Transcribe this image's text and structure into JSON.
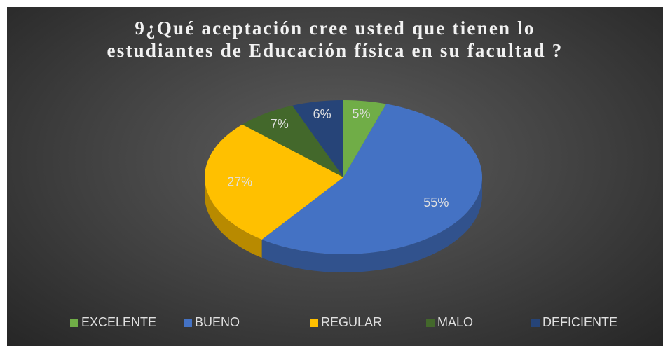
{
  "chart_data": {
    "type": "pie",
    "title": "9¿Qué aceptación cree usted que tienen lo estudiantes de Educación física en su facultad ?",
    "categories": [
      "EXCELENTE",
      "BUENO",
      "REGULAR",
      "MALO",
      "DEFICIENTE"
    ],
    "values": [
      5,
      55,
      27,
      7,
      6
    ],
    "value_labels": [
      "5%",
      "55%",
      "27%",
      "7%",
      "6%"
    ],
    "colors": [
      "#70ad47",
      "#4472c4",
      "#ffc000",
      "#43682b",
      "#264478"
    ],
    "legend": "bottom"
  }
}
